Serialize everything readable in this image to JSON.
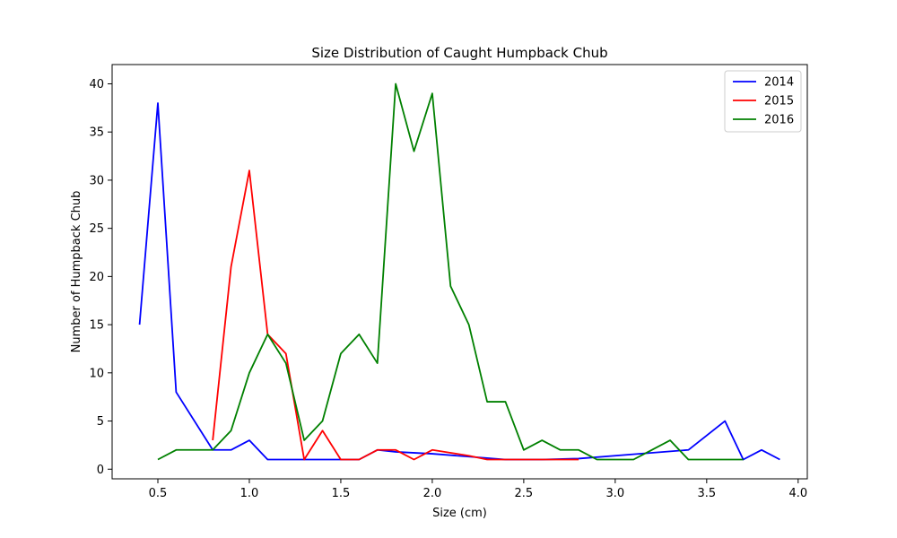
{
  "chart_data": {
    "type": "line",
    "title": "Size Distribution of Caught Humpback Chub",
    "xlabel": "Size (cm)",
    "ylabel": "Number of Humpback Chub",
    "xlim": [
      0.25,
      4.05
    ],
    "ylim": [
      -1,
      42
    ],
    "xticks": [
      0.5,
      1.0,
      1.5,
      2.0,
      2.5,
      3.0,
      3.5,
      4.0
    ],
    "xtick_labels": [
      "0.5",
      "1.0",
      "1.5",
      "2.0",
      "2.5",
      "3.0",
      "3.5",
      "4.0"
    ],
    "yticks": [
      0,
      5,
      10,
      15,
      20,
      25,
      30,
      35,
      40
    ],
    "ytick_labels": [
      "0",
      "5",
      "10",
      "15",
      "20",
      "25",
      "30",
      "35",
      "40"
    ],
    "grid": false,
    "legend_position": "top-right",
    "series": [
      {
        "name": "2014",
        "color": "#0000ff",
        "x": [
          0.4,
          0.5,
          0.6,
          0.8,
          0.9,
          1.0,
          1.1,
          1.2,
          1.3,
          1.4,
          1.5,
          1.6,
          1.7,
          1.8,
          2.0,
          2.2,
          2.4,
          2.6,
          2.8,
          3.4,
          3.6,
          3.7,
          3.8,
          3.9
        ],
        "y": [
          15,
          38,
          8,
          2,
          2,
          3,
          1,
          1,
          1,
          1,
          1,
          1,
          2,
          1.8,
          1.6,
          1.3,
          1,
          1,
          1.1,
          2,
          5,
          1,
          2,
          1
        ]
      },
      {
        "name": "2015",
        "color": "#ff0000",
        "x": [
          0.8,
          0.9,
          1.0,
          1.1,
          1.2,
          1.3,
          1.4,
          1.5,
          1.6,
          1.7,
          1.8,
          1.9,
          2.0,
          2.1,
          2.2,
          2.3,
          2.4,
          2.5,
          2.6,
          2.7,
          2.8
        ],
        "y": [
          3,
          21,
          31,
          14,
          12,
          1,
          4,
          1,
          1,
          2,
          2,
          1,
          2,
          1.7,
          1.4,
          1,
          1,
          1,
          1,
          1,
          1
        ]
      },
      {
        "name": "2016",
        "color": "#008000",
        "x": [
          0.5,
          0.6,
          0.7,
          0.8,
          0.9,
          1.0,
          1.1,
          1.2,
          1.3,
          1.4,
          1.5,
          1.6,
          1.7,
          1.8,
          1.9,
          2.0,
          2.1,
          2.2,
          2.3,
          2.4,
          2.5,
          2.6,
          2.7,
          2.8,
          2.9,
          3.0,
          3.1,
          3.2,
          3.3,
          3.4,
          3.5,
          3.6,
          3.7
        ],
        "y": [
          1,
          2,
          2,
          2,
          4,
          10,
          14,
          11,
          3,
          5,
          12,
          14,
          11,
          40,
          33,
          39,
          19,
          15,
          7,
          7,
          2,
          3,
          2,
          2,
          1,
          1,
          1,
          2,
          3,
          1,
          1,
          1,
          1
        ]
      }
    ]
  }
}
